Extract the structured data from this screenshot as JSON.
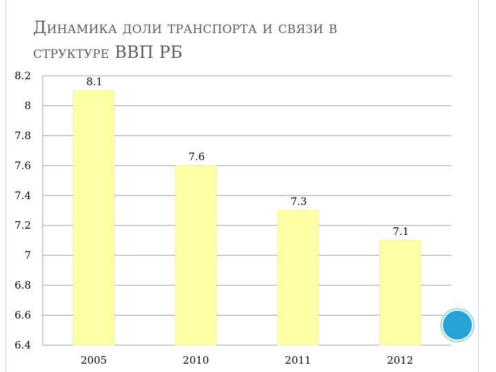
{
  "title": {
    "line1": "Динамика доли транспорта и связи в",
    "line2": "структуре ВВП РБ"
  },
  "colors": {
    "bar_fill": "#FFFFA6",
    "bar_stroke": "#F2EE9A",
    "grid": "#9e9e9e",
    "accent_circle": "#27A3D8",
    "title_text": "#5A5A5A"
  },
  "chart_data": {
    "type": "bar",
    "title": "",
    "xlabel": "",
    "ylabel": "",
    "categories": [
      "2005",
      "2010",
      "2011",
      "2012"
    ],
    "values": [
      8.1,
      7.6,
      7.3,
      7.1
    ],
    "data_labels": [
      "8.1",
      "7.6",
      "7.3",
      "7.1"
    ],
    "ylim": [
      6.4,
      8.2
    ],
    "yticks": [
      8.2,
      8,
      7.8,
      7.6,
      7.4,
      7.2,
      7,
      6.8,
      6.6,
      6.4
    ],
    "ytick_labels": [
      "8.2",
      "8",
      "7.8",
      "7.6",
      "7.4",
      "7.2",
      "7",
      "6.8",
      "6.6",
      "6.4"
    ],
    "grid": true,
    "legend": false
  }
}
